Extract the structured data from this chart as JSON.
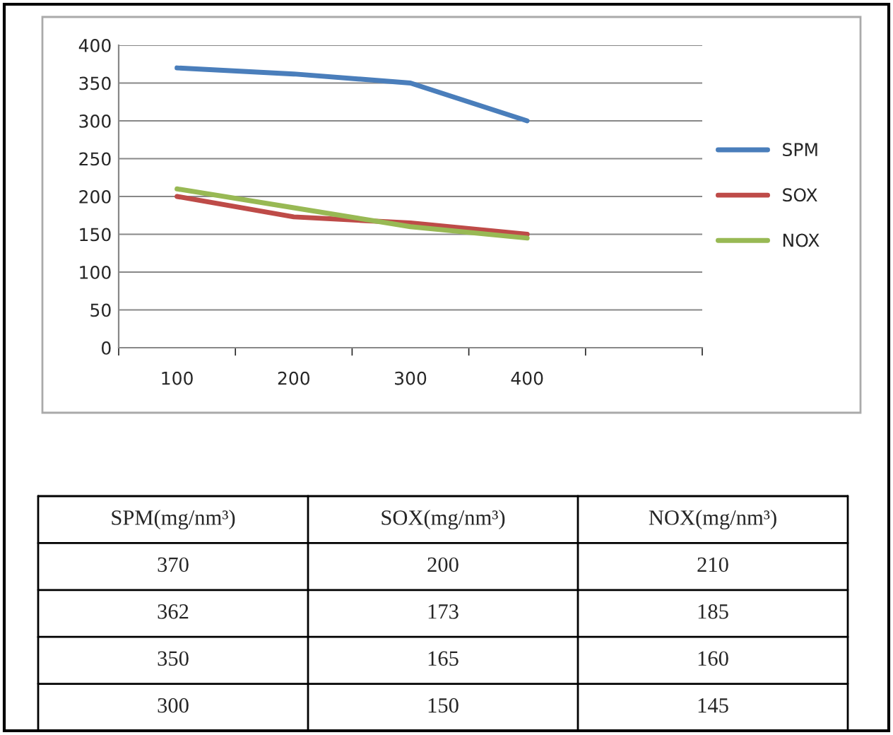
{
  "chart_data": [
    {
      "type": "line",
      "categories": [
        "100",
        "200",
        "300",
        "400",
        null
      ],
      "series": [
        {
          "name": "SPM",
          "color": "#4a7ebb",
          "values": [
            370,
            362,
            350,
            300,
            null
          ]
        },
        {
          "name": "SOX",
          "color": "#be4b48",
          "values": [
            200,
            173,
            165,
            150,
            null
          ]
        },
        {
          "name": "NOX",
          "color": "#98b954",
          "values": [
            210,
            185,
            160,
            145,
            null
          ]
        }
      ],
      "ylim": [
        0,
        400
      ],
      "yticks": [
        0,
        50,
        100,
        150,
        200,
        250,
        300,
        350,
        400
      ],
      "grid": "y",
      "legend": "right",
      "marker": "none",
      "line_style": "solid"
    },
    {
      "type": "other",
      "annotations": [
        "SPM(mg/nm³)",
        "SOX(mg/nm³)",
        "NOX(mg/nm³)",
        "370",
        "200",
        "210",
        "362",
        "173",
        "185",
        "350",
        "165",
        "160",
        "300",
        "150",
        "145"
      ]
    }
  ]
}
